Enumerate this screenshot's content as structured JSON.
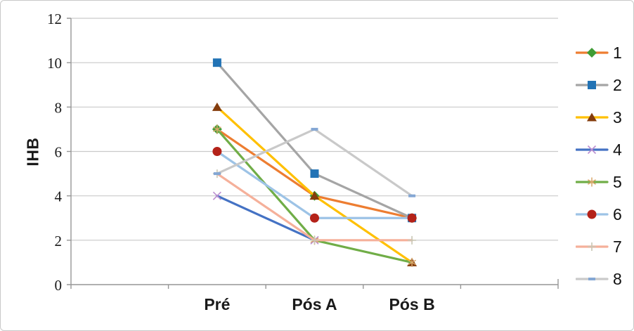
{
  "figure": {
    "background": "#ffffff",
    "border_color": "#c9c9c9"
  },
  "chart_data": {
    "type": "line",
    "title": "",
    "xlabel": "",
    "ylabel": "IHB",
    "ylim": [
      0,
      12
    ],
    "yticks": [
      0,
      2,
      4,
      6,
      8,
      10,
      12
    ],
    "grid": true,
    "grid_color": "#c9c9c9",
    "axis_color": "#969696",
    "legend_position": "right",
    "categories": [
      "Pré",
      "Pós A",
      "Pós B"
    ],
    "series": [
      {
        "name": "1",
        "values": [
          7,
          4,
          3
        ],
        "line_color": "#ED7D31",
        "marker": "diamond",
        "marker_color": "#3F9C35"
      },
      {
        "name": "2",
        "values": [
          10,
          5,
          3
        ],
        "line_color": "#A5A5A5",
        "marker": "square",
        "marker_color": "#2273B5"
      },
      {
        "name": "3",
        "values": [
          8,
          4,
          1
        ],
        "line_color": "#FFC000",
        "marker": "triangle",
        "marker_color": "#843C0C"
      },
      {
        "name": "4",
        "values": [
          4,
          2,
          null
        ],
        "line_color": "#4472C4",
        "marker": "x",
        "marker_color": "#BC8FD1"
      },
      {
        "name": "5",
        "values": [
          7,
          2,
          1
        ],
        "line_color": "#70AD47",
        "marker": "asterisk",
        "marker_color": "#D9A76A"
      },
      {
        "name": "6",
        "values": [
          6,
          3,
          3
        ],
        "line_color": "#9DC3E6",
        "marker": "circle",
        "marker_color": "#B42219"
      },
      {
        "name": "7",
        "values": [
          5,
          2,
          2
        ],
        "line_color": "#F5B09A",
        "marker": "plus",
        "marker_color": "#C8C6B4"
      },
      {
        "name": "8",
        "values": [
          5,
          7,
          4
        ],
        "line_color": "#C9C9C9",
        "marker": "dash",
        "marker_color": "#84A7D4"
      }
    ]
  }
}
